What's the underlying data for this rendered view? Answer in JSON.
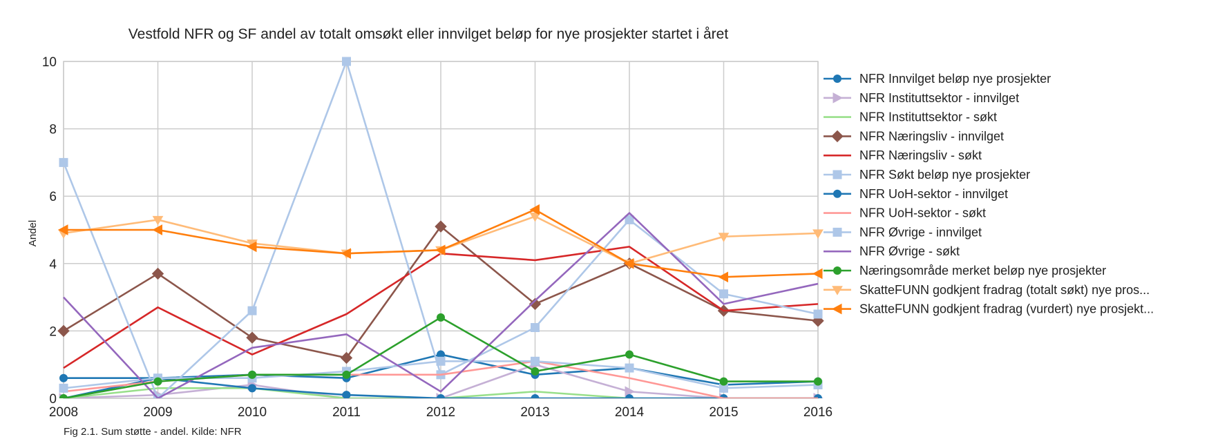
{
  "chart_data": {
    "type": "line",
    "title": "Vestfold NFR og SF andel av totalt omsøkt eller innvilget beløp for nye prosjekter startet i året",
    "ylabel": "Andel",
    "xlabel": "",
    "caption": "Fig 2.1. Sum støtte - andel. Kilde: NFR",
    "x": [
      2008,
      2009,
      2010,
      2011,
      2012,
      2013,
      2014,
      2015,
      2016
    ],
    "xlim": [
      2008,
      2016
    ],
    "ylim": [
      0,
      10
    ],
    "yticks": [
      0,
      2,
      4,
      6,
      8,
      10
    ],
    "grid": true,
    "legend_position": "right",
    "series": [
      {
        "name": "NFR Innvilget beløp nye prosjekter",
        "color": "#1f77b4",
        "marker": "circle",
        "values": [
          0.6,
          0.6,
          0.7,
          0.6,
          1.3,
          0.7,
          0.9,
          0.4,
          0.5
        ]
      },
      {
        "name": "NFR Instituttsektor - innvilget",
        "color": "#c5b0d5",
        "marker": "triangle-right",
        "values": [
          0.0,
          0.1,
          0.4,
          0.0,
          0.0,
          1.0,
          0.2,
          0.0,
          0.0
        ]
      },
      {
        "name": "NFR Instituttsektor - søkt",
        "color": "#98df8a",
        "marker": "none",
        "values": [
          0.0,
          0.3,
          0.3,
          0.0,
          0.0,
          0.2,
          0.0,
          0.0,
          0.0
        ]
      },
      {
        "name": "NFR Næringsliv - innvilget",
        "color": "#8c564b",
        "marker": "diamond",
        "values": [
          2.0,
          3.7,
          1.8,
          1.2,
          5.1,
          2.8,
          4.0,
          2.6,
          2.3
        ]
      },
      {
        "name": "NFR Næringsliv - søkt",
        "color": "#d62728",
        "marker": "none",
        "values": [
          0.9,
          2.7,
          1.3,
          2.5,
          4.3,
          4.1,
          4.5,
          2.6,
          2.8
        ]
      },
      {
        "name": "NFR Søkt beløp nye prosjekter",
        "color": "#aec7e8",
        "marker": "square",
        "values": [
          7.0,
          0.0,
          2.6,
          10.0,
          0.7,
          2.1,
          5.3,
          3.1,
          2.5
        ]
      },
      {
        "name": "NFR UoH-sektor - innvilget",
        "color": "#1f77b4",
        "marker": "circle",
        "values": [
          0.0,
          0.6,
          0.3,
          0.1,
          0.0,
          0.0,
          0.0,
          0.0,
          0.0
        ]
      },
      {
        "name": "NFR UoH-sektor - søkt",
        "color": "#ff9896",
        "marker": "none",
        "values": [
          0.2,
          0.5,
          0.7,
          0.7,
          0.7,
          1.1,
          0.6,
          0.0,
          0.0
        ]
      },
      {
        "name": "NFR Øvrige - innvilget",
        "color": "#aec7e8",
        "marker": "square",
        "values": [
          0.3,
          0.6,
          0.6,
          0.8,
          1.1,
          1.1,
          0.9,
          0.3,
          0.4
        ]
      },
      {
        "name": "NFR Øvrige - søkt",
        "color": "#9467bd",
        "marker": "none",
        "values": [
          3.0,
          0.0,
          1.5,
          1.9,
          0.2,
          2.9,
          5.5,
          2.8,
          3.4
        ]
      },
      {
        "name": "Næringsområde merket beløp nye prosjekter",
        "color": "#2ca02c",
        "marker": "circle",
        "values": [
          0.0,
          0.5,
          0.7,
          0.7,
          2.4,
          0.8,
          1.3,
          0.5,
          0.5
        ]
      },
      {
        "name": "SkatteFUNN godkjent fradrag (totalt søkt) nye pros...",
        "color": "#ffbb78",
        "marker": "triangle-down",
        "values": [
          4.9,
          5.3,
          4.6,
          4.3,
          4.4,
          5.4,
          4.0,
          4.8,
          4.9
        ]
      },
      {
        "name": "SkatteFUNN godkjent fradrag (vurdert) nye prosjekt...",
        "color": "#ff7f0e",
        "marker": "triangle-left",
        "values": [
          5.0,
          5.0,
          4.5,
          4.3,
          4.4,
          5.6,
          4.0,
          3.6,
          3.7
        ]
      }
    ]
  }
}
